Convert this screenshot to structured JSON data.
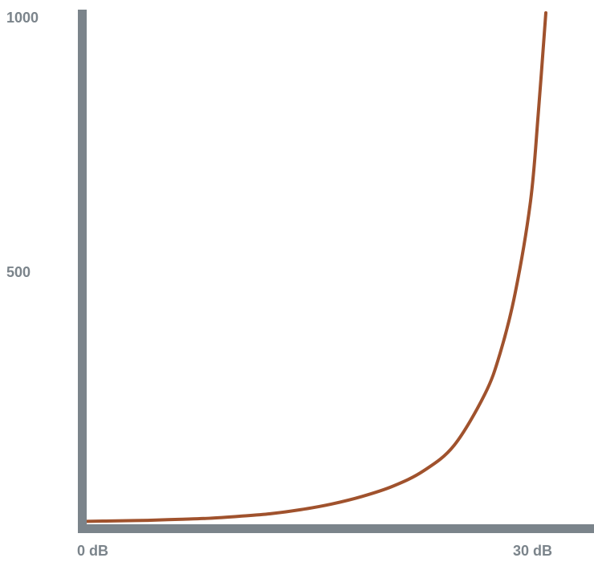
{
  "chart_data": {
    "type": "line",
    "title": "",
    "xlabel": "",
    "ylabel": "",
    "xlim": [
      0,
      30
    ],
    "ylim": [
      0,
      1000
    ],
    "x_tick_labels": [
      {
        "value": 0,
        "label": "0 dB"
      },
      {
        "value": 30,
        "label": "30 dB"
      }
    ],
    "y_tick_labels": [
      {
        "value": 500,
        "label": "500"
      },
      {
        "value": 1000,
        "label": "1000"
      }
    ],
    "grid": false,
    "series": [
      {
        "x": [
          0,
          2,
          4,
          6,
          8,
          10,
          12,
          14,
          16,
          18,
          20,
          22,
          24,
          26,
          27,
          28,
          29,
          29.5,
          30
        ],
        "values": [
          1,
          2,
          3,
          5,
          7,
          11,
          16,
          24,
          35,
          50,
          70,
          100,
          150,
          250,
          330,
          450,
          630,
          800,
          1000
        ]
      }
    ],
    "colors": {
      "axis": "#7b848b",
      "line": "#a0522d",
      "label": "#7b848b"
    }
  }
}
